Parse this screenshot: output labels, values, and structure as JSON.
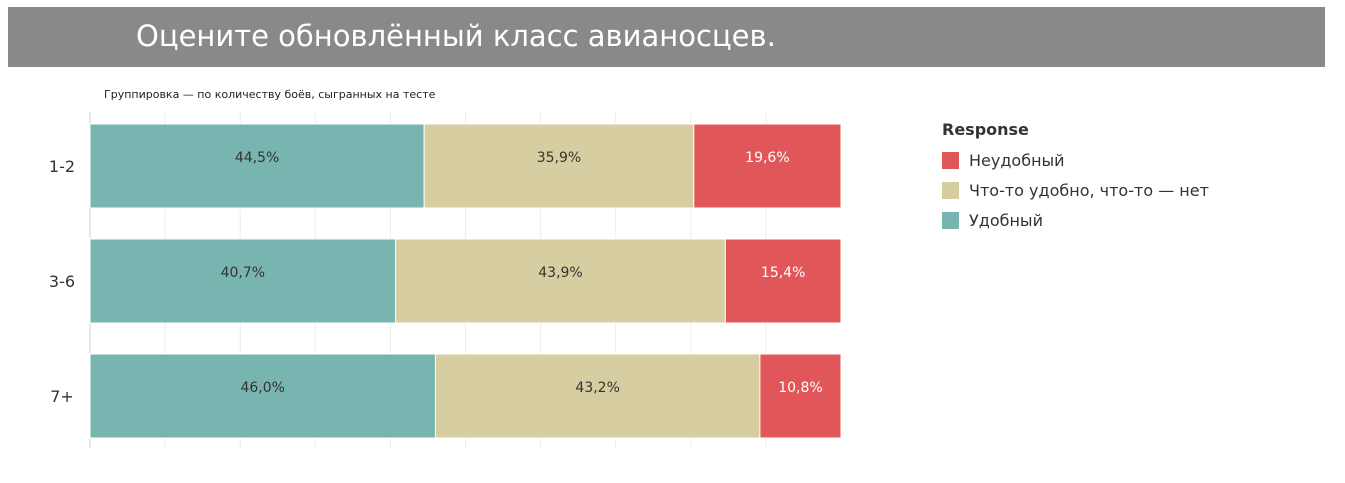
{
  "title": "Оцените обновлённый класс авианосцев.",
  "subtitle": "Группировка — по количеству боёв, сыгранных на тесте",
  "legend": {
    "title": "Response",
    "items": [
      {
        "label": "Неудобный",
        "color": "#e15759"
      },
      {
        "label": "Что-то удобно, что-то — нет",
        "color": "#d6cda0"
      },
      {
        "label": "Удобный",
        "color": "#79b5b0"
      }
    ]
  },
  "chart_data": {
    "type": "bar",
    "orientation": "horizontal",
    "stacked": true,
    "categories": [
      "1-2",
      "3-6",
      "7+"
    ],
    "series": [
      {
        "name": "Удобный",
        "values": [
          44.5,
          40.7,
          46.0
        ],
        "labels": [
          "44,5%",
          "40,7%",
          "46,0%"
        ],
        "color": "#79b5b0",
        "label_color": "#333333"
      },
      {
        "name": "Что-то удобно, что-то — нет",
        "values": [
          35.9,
          43.9,
          43.2
        ],
        "labels": [
          "35,9%",
          "43,9%",
          "43,2%"
        ],
        "color": "#d6cda0",
        "label_color": "#333333"
      },
      {
        "name": "Неудобный",
        "values": [
          19.6,
          15.4,
          10.8
        ],
        "labels": [
          "19,6%",
          "15,4%",
          "10,8%"
        ],
        "color": "#e15759",
        "label_color": "#ffffff"
      }
    ],
    "xlim": [
      0,
      100
    ],
    "grid": true,
    "legend_position": "right"
  }
}
